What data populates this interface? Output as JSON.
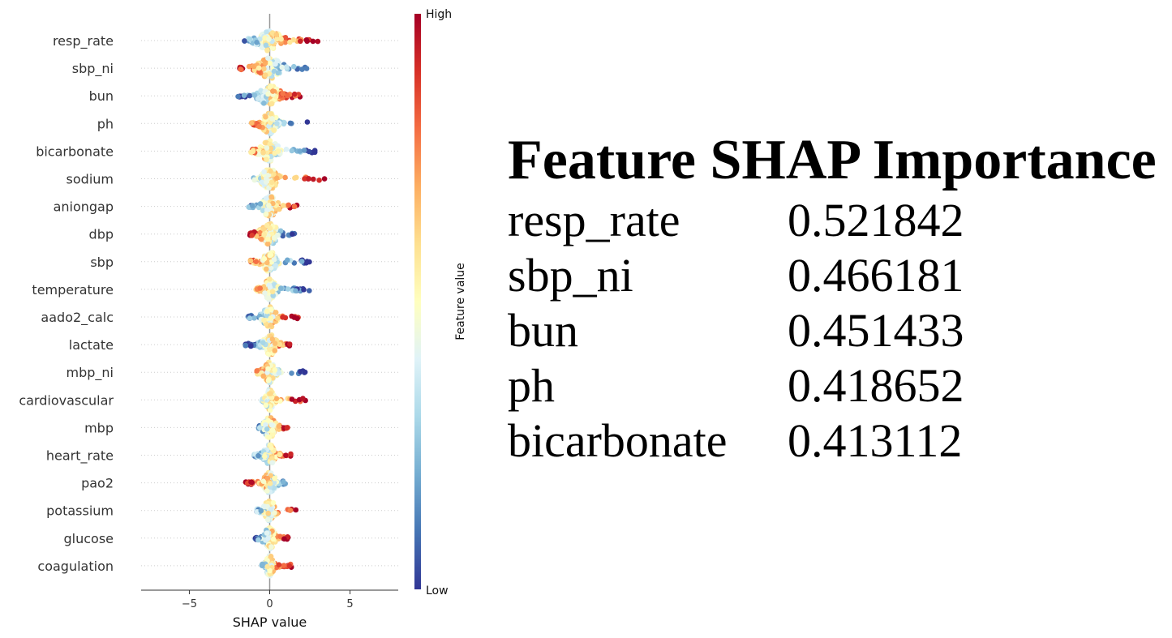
{
  "chart_data": {
    "type": "scatter",
    "subtype": "shap-beeswarm",
    "xlabel": "SHAP value",
    "xticks": [
      -5,
      0,
      5
    ],
    "xlim": [
      -8,
      8
    ],
    "colorbar": {
      "label": "Feature value",
      "high_label": "High",
      "low_label": "Low",
      "colormap": [
        "#313695",
        "#4575b4",
        "#74add1",
        "#abd9e9",
        "#e0f3f8",
        "#ffffbf",
        "#fee090",
        "#fdae61",
        "#f46d43",
        "#d73027",
        "#a50026"
      ]
    },
    "features": [
      {
        "name": "resp_rate",
        "min": -1.6,
        "max": 3.0,
        "spread": 1.2,
        "high_side": "right"
      },
      {
        "name": "sbp_ni",
        "min": -1.9,
        "max": 2.4,
        "spread": 1.2,
        "high_side": "left"
      },
      {
        "name": "bun",
        "min": -2.0,
        "max": 1.9,
        "spread": 1.1,
        "high_side": "right"
      },
      {
        "name": "ph",
        "min": -1.2,
        "max": 2.6,
        "spread": 0.8,
        "high_side": "left"
      },
      {
        "name": "bicarbonate",
        "min": -1.2,
        "max": 2.9,
        "spread": 0.9,
        "high_side": "left"
      },
      {
        "name": "sodium",
        "min": -1.0,
        "max": 3.7,
        "spread": 0.8,
        "high_side": "right"
      },
      {
        "name": "aniongap",
        "min": -1.3,
        "max": 2.1,
        "spread": 0.7,
        "high_side": "right"
      },
      {
        "name": "dbp",
        "min": -1.3,
        "max": 1.6,
        "spread": 0.9,
        "high_side": "left"
      },
      {
        "name": "sbp",
        "min": -1.2,
        "max": 2.5,
        "spread": 0.7,
        "high_side": "left"
      },
      {
        "name": "temperature",
        "min": -0.9,
        "max": 2.5,
        "spread": 0.6,
        "high_side": "left"
      },
      {
        "name": "aado2_calc",
        "min": -1.4,
        "max": 1.8,
        "spread": 0.7,
        "high_side": "right"
      },
      {
        "name": "lactate",
        "min": -1.6,
        "max": 1.3,
        "spread": 0.7,
        "high_side": "right"
      },
      {
        "name": "mbp_ni",
        "min": -0.8,
        "max": 2.2,
        "spread": 0.6,
        "high_side": "left"
      },
      {
        "name": "cardiovascular",
        "min": -0.5,
        "max": 2.3,
        "spread": 0.4,
        "high_side": "right"
      },
      {
        "name": "mbp",
        "min": -0.7,
        "max": 1.3,
        "spread": 0.6,
        "high_side": "right"
      },
      {
        "name": "heart_rate",
        "min": -1.0,
        "max": 1.6,
        "spread": 0.6,
        "high_side": "right"
      },
      {
        "name": "pao2",
        "min": -1.5,
        "max": 1.0,
        "spread": 0.6,
        "high_side": "left"
      },
      {
        "name": "potassium",
        "min": -0.8,
        "max": 1.8,
        "spread": 0.6,
        "high_side": "right"
      },
      {
        "name": "glucose",
        "min": -1.0,
        "max": 1.2,
        "spread": 0.6,
        "high_side": "right"
      },
      {
        "name": "coagulation",
        "min": -0.5,
        "max": 1.5,
        "spread": 0.4,
        "high_side": "right"
      }
    ]
  },
  "importance_panel": {
    "title": "Feature SHAP Importance",
    "rows": [
      {
        "name": "resp_rate",
        "value": "0.521842"
      },
      {
        "name": "sbp_ni",
        "value": "0.466181"
      },
      {
        "name": "bun",
        "value": "0.451433"
      },
      {
        "name": "ph",
        "value": "0.418652"
      },
      {
        "name": "bicarbonate",
        "value": "0.413112"
      }
    ]
  }
}
